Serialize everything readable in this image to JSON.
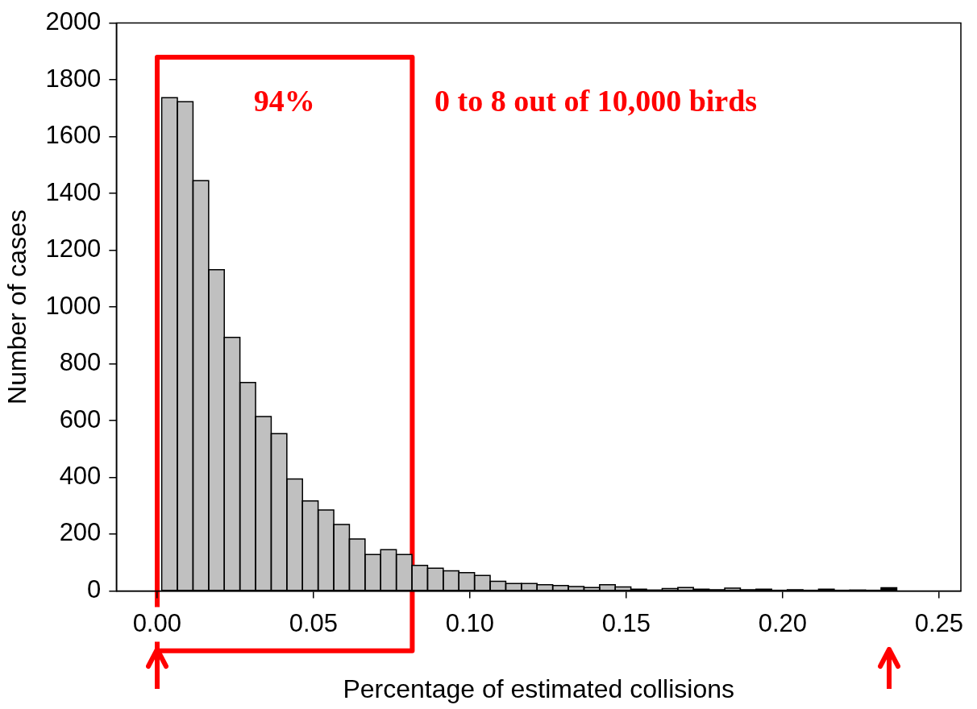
{
  "chart_data": {
    "type": "histogram",
    "xlabel": "Percentage of estimated collisions",
    "ylabel": "Number of cases",
    "bins": [
      0.0015,
      0.0065,
      0.0115,
      0.0165,
      0.0215,
      0.0265,
      0.0315,
      0.0365,
      0.0415,
      0.0465,
      0.0515,
      0.0565,
      0.0615,
      0.0665,
      0.0715,
      0.0765,
      0.0815,
      0.0865,
      0.0915,
      0.0965,
      0.1015,
      0.1065,
      0.1115,
      0.1165,
      0.1215,
      0.1265,
      0.1315,
      0.1365,
      0.1415,
      0.1465,
      0.1515,
      0.1565,
      0.1615,
      0.1665,
      0.1715,
      0.1765,
      0.1815,
      0.1865,
      0.1915,
      0.1965,
      0.2015,
      0.2065,
      0.2115,
      0.2165,
      0.2215,
      0.2265,
      0.2315,
      0.2365
    ],
    "values": [
      1737,
      1723,
      1445,
      1131,
      893,
      734,
      614,
      554,
      394,
      317,
      285,
      234,
      183,
      128,
      145,
      128,
      90,
      80,
      71,
      64,
      54,
      34,
      26,
      26,
      22,
      19,
      15,
      12,
      22,
      14,
      6,
      3,
      8,
      12,
      6,
      4,
      10,
      4,
      6,
      1,
      4,
      1,
      6,
      1,
      3,
      1,
      11
    ],
    "colors": [
      "#c0c0c0",
      "#c0c0c0",
      "#c0c0c0",
      "#c0c0c0",
      "#c0c0c0",
      "#c0c0c0",
      "#c0c0c0",
      "#c0c0c0",
      "#c0c0c0",
      "#c0c0c0",
      "#c0c0c0",
      "#c0c0c0",
      "#c0c0c0",
      "#c0c0c0",
      "#c0c0c0",
      "#c0c0c0",
      "#c0c0c0",
      "#c0c0c0",
      "#c0c0c0",
      "#c0c0c0",
      "#c0c0c0",
      "#c0c0c0",
      "#c0c0c0",
      "#c0c0c0",
      "#c0c0c0",
      "#c0c0c0",
      "#c0c0c0",
      "#c0c0c0",
      "#c0c0c0",
      "#c0c0c0",
      "#c0c0c0",
      "#c0c0c0",
      "#c0c0c0",
      "#c0c0c0",
      "#c0c0c0",
      "#c0c0c0",
      "#c0c0c0",
      "#c0c0c0",
      "#c0c0c0",
      "#c0c0c0",
      "#c0c0c0",
      "#c0c0c0",
      "#c0c0c0",
      "#c0c0c0",
      "#c0c0c0",
      "#c0c0c0",
      "#000000"
    ],
    "xlim": [
      -0.013,
      0.257
    ],
    "xticks": [
      {
        "value": 0,
        "label": "0.00"
      },
      {
        "value": 0.05,
        "label": "0.05"
      },
      {
        "value": 0.1,
        "label": "0.10"
      },
      {
        "value": 0.15,
        "label": "0.15"
      },
      {
        "value": 0.2,
        "label": "0.20"
      },
      {
        "value": 0.25,
        "label": "0.25"
      }
    ],
    "ylim": [
      0,
      2000
    ],
    "yticks": [
      0,
      200,
      400,
      600,
      800,
      1000,
      1200,
      1400,
      1600,
      1800,
      2000
    ],
    "grid": false,
    "annotations": [
      "94%",
      "0 to 8 out of 10,000 birds"
    ]
  }
}
